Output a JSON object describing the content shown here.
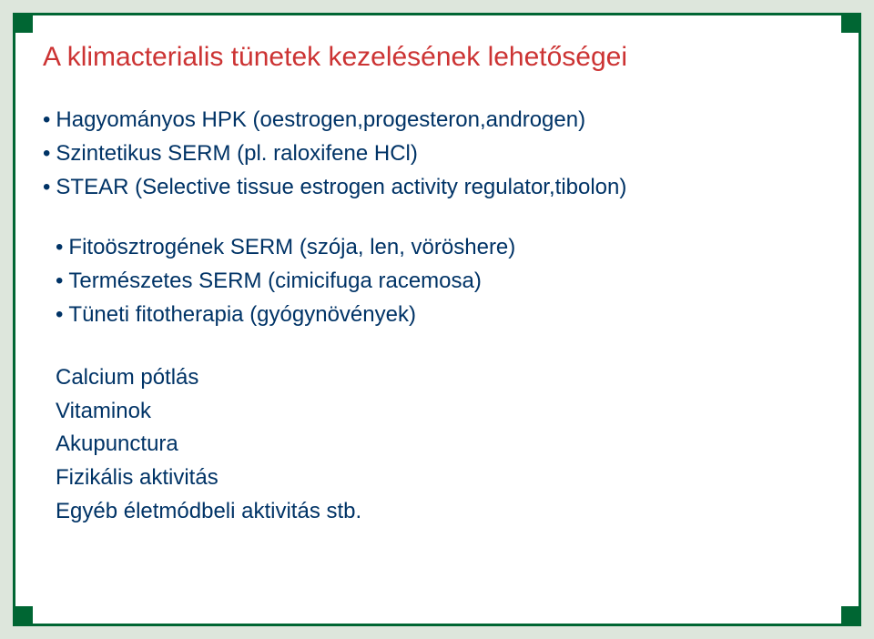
{
  "colors": {
    "frame_border": "#006633",
    "outer_bg": "#dde6dc",
    "inner_bg": "#ffffff",
    "title_color": "#cc3333",
    "body_color": "#003366"
  },
  "title": "A klimacterialis tünetek kezelésének lehetőségei",
  "list1": {
    "item1": "Hagyományos HPK (oestrogen,progesteron,androgen)",
    "item2": "Szintetikus SERM (pl. raloxifene HCl)",
    "item3": "STEAR (Selective tissue estrogen activity regulator,tibolon)"
  },
  "list2": {
    "item1": "Fitoösztrogének SERM (szója, len, vöröshere)",
    "item2": "Természetes SERM (cimicifuga racemosa)",
    "item3": "Tüneti fitotherapia (gyógynövények)"
  },
  "list3": {
    "item1": "Calcium pótlás",
    "item2": "Vitaminok",
    "item3": "Akupunctura",
    "item4": "Fizikális aktivitás",
    "item5": "Egyéb életmódbeli aktivitás stb."
  }
}
